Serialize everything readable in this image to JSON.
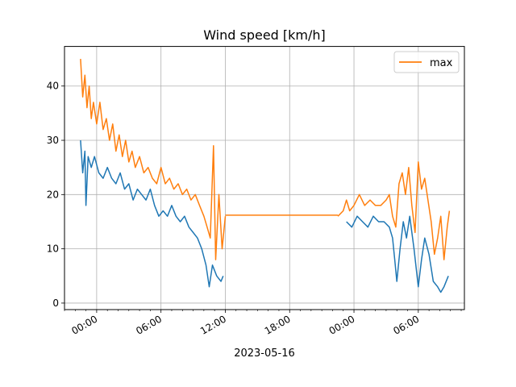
{
  "chart_data": {
    "type": "line",
    "title": "Wind speed [km/h]",
    "xlabel": "2023-05-16",
    "ylabel": "",
    "x_unit": "hours relative to 2023-05-16 00:00",
    "xlim": [
      -3.0,
      34.3
    ],
    "ylim": [
      -1.2,
      47.3
    ],
    "grid": true,
    "legend_position": "top-right",
    "x_ticks": [
      {
        "h": 0,
        "label": "00:00"
      },
      {
        "h": 6,
        "label": "06:00"
      },
      {
        "h": 12,
        "label": "12:00"
      },
      {
        "h": 18,
        "label": "18:00"
      },
      {
        "h": 24,
        "label": "00:00"
      },
      {
        "h": 30,
        "label": "06:00"
      }
    ],
    "y_ticks": [
      0,
      10,
      20,
      30,
      40
    ],
    "series": [
      {
        "name": "",
        "color": "#1f77b4",
        "points": [
          [
            -1.5,
            30
          ],
          [
            -1.3,
            24
          ],
          [
            -1.1,
            28
          ],
          [
            -1.0,
            18
          ],
          [
            -0.8,
            27
          ],
          [
            -0.5,
            25
          ],
          [
            -0.2,
            27
          ],
          [
            0.2,
            24
          ],
          [
            0.6,
            23
          ],
          [
            1.0,
            25
          ],
          [
            1.4,
            23
          ],
          [
            1.8,
            22
          ],
          [
            2.2,
            24
          ],
          [
            2.6,
            21
          ],
          [
            3.0,
            22
          ],
          [
            3.4,
            19
          ],
          [
            3.8,
            21
          ],
          [
            4.2,
            20
          ],
          [
            4.6,
            19
          ],
          [
            5.0,
            21
          ],
          [
            5.4,
            18
          ],
          [
            5.8,
            16
          ],
          [
            6.2,
            17
          ],
          [
            6.6,
            16
          ],
          [
            7.0,
            18
          ],
          [
            7.4,
            16
          ],
          [
            7.8,
            15
          ],
          [
            8.2,
            16
          ],
          [
            8.6,
            14
          ],
          [
            9.0,
            13
          ],
          [
            9.4,
            12
          ],
          [
            9.8,
            10
          ],
          [
            10.2,
            7
          ],
          [
            10.5,
            3
          ],
          [
            10.8,
            7
          ],
          [
            11.2,
            5
          ],
          [
            11.6,
            4
          ],
          [
            11.8,
            5
          ],
          [
            23.3,
            15
          ],
          [
            23.8,
            14
          ],
          [
            24.3,
            16
          ],
          [
            24.8,
            15
          ],
          [
            25.3,
            14
          ],
          [
            25.8,
            16
          ],
          [
            26.3,
            15
          ],
          [
            26.8,
            15
          ],
          [
            27.3,
            14
          ],
          [
            27.6,
            12
          ],
          [
            27.8,
            8
          ],
          [
            28.0,
            4
          ],
          [
            28.3,
            10
          ],
          [
            28.6,
            15
          ],
          [
            28.9,
            12
          ],
          [
            29.2,
            16
          ],
          [
            29.6,
            10
          ],
          [
            30.0,
            3
          ],
          [
            30.3,
            8
          ],
          [
            30.6,
            12
          ],
          [
            31.0,
            9
          ],
          [
            31.4,
            4
          ],
          [
            31.8,
            3
          ],
          [
            32.1,
            2
          ],
          [
            32.4,
            3
          ],
          [
            32.8,
            5
          ]
        ]
      },
      {
        "name": "max",
        "color": "#ff7f0e",
        "points": [
          [
            -1.5,
            45
          ],
          [
            -1.3,
            38
          ],
          [
            -1.1,
            42
          ],
          [
            -0.9,
            36
          ],
          [
            -0.7,
            40
          ],
          [
            -0.5,
            34
          ],
          [
            -0.3,
            37
          ],
          [
            0.0,
            33
          ],
          [
            0.3,
            37
          ],
          [
            0.6,
            32
          ],
          [
            0.9,
            34
          ],
          [
            1.2,
            30
          ],
          [
            1.5,
            33
          ],
          [
            1.8,
            28
          ],
          [
            2.1,
            31
          ],
          [
            2.4,
            27
          ],
          [
            2.7,
            30
          ],
          [
            3.0,
            26
          ],
          [
            3.3,
            28
          ],
          [
            3.6,
            25
          ],
          [
            4.0,
            27
          ],
          [
            4.4,
            24
          ],
          [
            4.8,
            25
          ],
          [
            5.2,
            23
          ],
          [
            5.6,
            22
          ],
          [
            6.0,
            25
          ],
          [
            6.4,
            22
          ],
          [
            6.8,
            23
          ],
          [
            7.2,
            21
          ],
          [
            7.6,
            22
          ],
          [
            8.0,
            20
          ],
          [
            8.4,
            21
          ],
          [
            8.8,
            19
          ],
          [
            9.2,
            20
          ],
          [
            9.6,
            18
          ],
          [
            10.0,
            16
          ],
          [
            10.3,
            14
          ],
          [
            10.6,
            12
          ],
          [
            10.9,
            29
          ],
          [
            11.1,
            8
          ],
          [
            11.4,
            20
          ],
          [
            11.7,
            10
          ],
          [
            12.0,
            16
          ],
          [
            22.5,
            16
          ],
          [
            23.0,
            17
          ],
          [
            23.3,
            19
          ],
          [
            23.6,
            17
          ],
          [
            24.0,
            18
          ],
          [
            24.5,
            20
          ],
          [
            25.0,
            18
          ],
          [
            25.5,
            19
          ],
          [
            26.0,
            18
          ],
          [
            26.5,
            18
          ],
          [
            27.0,
            19
          ],
          [
            27.3,
            20
          ],
          [
            27.6,
            16
          ],
          [
            27.9,
            14
          ],
          [
            28.2,
            22
          ],
          [
            28.5,
            24
          ],
          [
            28.8,
            20
          ],
          [
            29.1,
            25
          ],
          [
            29.4,
            18
          ],
          [
            29.7,
            13
          ],
          [
            30.0,
            26
          ],
          [
            30.3,
            21
          ],
          [
            30.6,
            23
          ],
          [
            30.9,
            19
          ],
          [
            31.2,
            15
          ],
          [
            31.5,
            9
          ],
          [
            31.8,
            12
          ],
          [
            32.1,
            16
          ],
          [
            32.4,
            8
          ],
          [
            32.7,
            14
          ],
          [
            32.9,
            17
          ]
        ]
      }
    ],
    "gap_line": {
      "series": "max",
      "x_start": 12.0,
      "x_end": 22.5,
      "value": 16.2
    }
  }
}
